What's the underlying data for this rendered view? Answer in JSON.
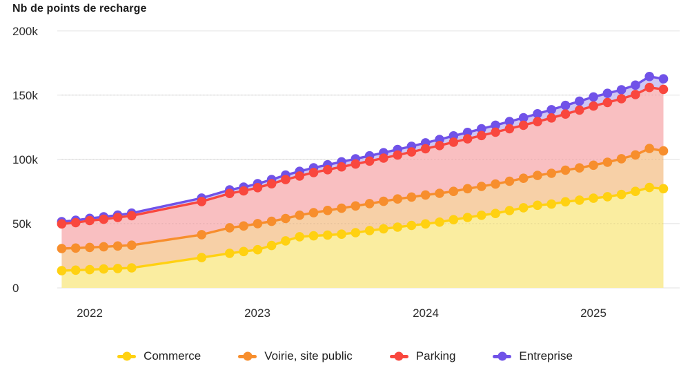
{
  "title": "Nb de points de recharge",
  "axes": {
    "y_ticks": [
      "200k",
      "150k",
      "100k",
      "50k",
      "0"
    ],
    "y_values": [
      200,
      150,
      100,
      50,
      0
    ],
    "x_ticks": [
      "2022",
      "2023",
      "2024",
      "2025"
    ]
  },
  "legend": [
    {
      "label": "Commerce",
      "color": "#FFD111"
    },
    {
      "label": "Voirie, site public",
      "color": "#F78E2D"
    },
    {
      "label": "Parking",
      "color": "#F9473E"
    },
    {
      "label": "Entreprise",
      "color": "#7052E8"
    }
  ],
  "colors": {
    "grid": "#e6e6e6",
    "tick_text": "#2e2e2e",
    "title_text": "#1c1c1c"
  },
  "chart_data": {
    "type": "line",
    "title": "Nb de points de recharge",
    "xlabel": "",
    "ylabel": "Nb de points de recharge",
    "y_unit": "k",
    "values_unit": "thousands of charging points",
    "ylim": [
      0,
      200
    ],
    "grid": "horizontal",
    "legend_position": "bottom",
    "x": [
      "2021-11",
      "2021-12",
      "2022-01",
      "2022-02",
      "2022-03",
      "2022-04",
      "2022-09",
      "2022-11",
      "2022-12",
      "2023-01",
      "2023-02",
      "2023-03",
      "2023-04",
      "2023-05",
      "2023-06",
      "2023-07",
      "2023-08",
      "2023-09",
      "2023-10",
      "2023-11",
      "2023-12",
      "2024-01",
      "2024-02",
      "2024-03",
      "2024-04",
      "2024-05",
      "2024-06",
      "2024-07",
      "2024-08",
      "2024-09",
      "2024-10",
      "2024-11",
      "2024-12",
      "2025-01",
      "2025-02",
      "2025-03",
      "2025-04",
      "2025-05",
      "2025-06"
    ],
    "series": [
      {
        "name": "Commerce",
        "line_color": "#FFD111",
        "fill_color": "#FAEDA0",
        "values": [
          13.4,
          13.8,
          14.2,
          14.7,
          15.1,
          15.6,
          23.6,
          26.9,
          28.3,
          29.7,
          33.0,
          36.6,
          39.8,
          40.5,
          41.1,
          41.8,
          43.0,
          44.6,
          46.0,
          47.3,
          48.6,
          49.8,
          51.2,
          53.1,
          54.8,
          56.5,
          57.9,
          60.2,
          62.4,
          64.3,
          65.2,
          67.0,
          68.3,
          69.8,
          71.0,
          72.7,
          75.1,
          78.1,
          77.2
        ]
      },
      {
        "name": "Voirie, site public",
        "line_color": "#F78E2D",
        "fill_color": "#F7D0A7",
        "values": [
          30.6,
          31.0,
          31.5,
          32.0,
          32.6,
          33.2,
          41.4,
          46.8,
          48.2,
          50.0,
          51.8,
          54.0,
          56.6,
          58.5,
          60.3,
          62.0,
          63.8,
          65.6,
          67.4,
          69.2,
          70.7,
          72.3,
          73.6,
          75.1,
          77.2,
          79.0,
          80.8,
          83.0,
          85.3,
          87.5,
          89.2,
          91.6,
          93.4,
          95.5,
          97.8,
          100.5,
          103.5,
          108.5,
          106.6
        ]
      },
      {
        "name": "Parking",
        "line_color": "#F9473E",
        "fill_color": "#F9BFC1",
        "values": [
          49.8,
          50.8,
          52.4,
          53.4,
          54.8,
          56.2,
          67.2,
          73.5,
          75.5,
          78.0,
          81.0,
          84.3,
          87.1,
          89.8,
          92.0,
          94.2,
          96.4,
          98.7,
          101.0,
          103.4,
          105.8,
          108.3,
          110.8,
          113.4,
          116.0,
          118.6,
          121.2,
          123.9,
          126.6,
          129.4,
          132.3,
          135.3,
          138.4,
          141.5,
          144.3,
          147.2,
          150.5,
          156.0,
          154.5
        ]
      },
      {
        "name": "Entreprise",
        "line_color": "#7052E8",
        "fill_color": "#CFC7F3",
        "values": [
          51.5,
          52.6,
          54.1,
          55.3,
          56.7,
          58.2,
          69.9,
          76.3,
          78.4,
          81.1,
          84.3,
          87.8,
          90.7,
          93.5,
          95.8,
          98.1,
          100.4,
          102.8,
          105.2,
          107.7,
          110.2,
          112.9,
          115.5,
          118.3,
          121.0,
          123.8,
          126.6,
          129.5,
          132.4,
          135.5,
          138.7,
          142.0,
          145.3,
          148.6,
          151.4,
          154.2,
          157.8,
          164.5,
          162.7
        ]
      }
    ]
  }
}
